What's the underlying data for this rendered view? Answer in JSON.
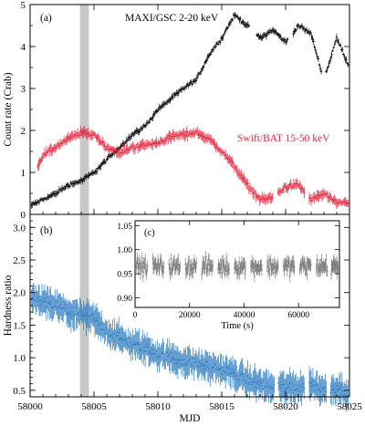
{
  "colors": {
    "maxi": "#000000",
    "bat": "#e3263f",
    "hardness": "#2a7ac0",
    "inset": "#808080",
    "shade": "#c8c8c8"
  },
  "chart_data": [
    {
      "panel": "(a)",
      "type": "scatter",
      "xlabel": "",
      "ylabel": "Count rate (Crab)",
      "xlim": [
        58000,
        58025
      ],
      "ylim": [
        0,
        5
      ],
      "xticks": [
        58000,
        58005,
        58010,
        58015,
        58020,
        58025
      ],
      "yticks": [
        0,
        1,
        2,
        3,
        4,
        5
      ],
      "shaded_band_x": [
        58003.9,
        58004.6
      ],
      "series": [
        {
          "name": "MAXI/GSC 2-20 keV",
          "color": "#000000",
          "x": [
            58000,
            58001,
            58002,
            58003,
            58004,
            58005,
            58006,
            58007,
            58008,
            58009,
            58010,
            58011,
            58012,
            58013,
            58014,
            58015,
            58016,
            58017,
            58018,
            58019,
            58020,
            58021,
            58022,
            58023,
            58024,
            58025
          ],
          "y": [
            0.2,
            0.35,
            0.5,
            0.7,
            0.8,
            1.0,
            1.3,
            1.6,
            1.9,
            2.1,
            2.5,
            2.75,
            3.0,
            3.2,
            3.8,
            4.2,
            4.75,
            4.5,
            4.2,
            4.4,
            4.1,
            4.5,
            4.3,
            3.2,
            4.2,
            3.5
          ]
        },
        {
          "name": "Swift/BAT 15-50 keV",
          "color": "#e3263f",
          "x": [
            58000.5,
            58001,
            58002,
            58003,
            58004,
            58005,
            58006,
            58007,
            58008,
            58009,
            58010,
            58011,
            58012,
            58013,
            58014,
            58015,
            58016,
            58017,
            58018,
            58019,
            58020,
            58021,
            58022,
            58023,
            58024,
            58025
          ],
          "y": [
            1.1,
            1.4,
            1.6,
            1.8,
            1.95,
            1.9,
            1.6,
            1.45,
            1.6,
            1.65,
            1.7,
            1.85,
            1.9,
            1.95,
            1.8,
            1.5,
            1.15,
            0.7,
            0.35,
            0.4,
            0.65,
            0.7,
            0.35,
            0.5,
            0.25,
            0.3
          ]
        }
      ]
    },
    {
      "panel": "(b)",
      "type": "scatter",
      "xlabel": "MJD",
      "ylabel": "Hardness ratio",
      "xlim": [
        58000,
        58025
      ],
      "ylim": [
        0.4,
        3.2
      ],
      "xticks": [
        58000,
        58005,
        58010,
        58015,
        58020,
        58025
      ],
      "xticklabels": [
        "58000",
        "58005",
        "58010",
        "58015",
        "58020",
        "58025"
      ],
      "yticks": [
        0.5,
        1.0,
        1.5,
        2.0,
        2.5,
        3.0
      ],
      "yticklabels": [
        "0.5",
        "1.0",
        "1.5",
        "2.0",
        "2.5",
        "3.0"
      ],
      "shaded_band_x": [
        58003.9,
        58004.6
      ],
      "series": [
        {
          "color": "#2a7ac0",
          "x": [
            58000,
            58001,
            58002,
            58003,
            58004,
            58005,
            58006,
            58007,
            58008,
            58009,
            58010,
            58011,
            58012,
            58013,
            58014,
            58015,
            58016,
            58017,
            58018,
            58019,
            58020,
            58021,
            58022,
            58023,
            58024,
            58025
          ],
          "y": [
            1.9,
            1.85,
            1.8,
            1.7,
            1.65,
            1.6,
            1.4,
            1.3,
            1.2,
            1.15,
            1.05,
            1.0,
            0.95,
            0.9,
            0.87,
            0.82,
            0.75,
            0.65,
            0.6,
            0.55,
            0.55,
            0.55,
            0.6,
            0.5,
            0.55,
            0.45
          ]
        }
      ]
    },
    {
      "panel": "(c)",
      "type": "scatter",
      "xlabel": "Time (s)",
      "ylabel": "",
      "xlim": [
        0,
        75000
      ],
      "ylim": [
        0.88,
        1.06
      ],
      "xticks": [
        0,
        20000,
        40000,
        60000
      ],
      "yticks": [
        0.9,
        0.95,
        1.0,
        1.05
      ],
      "yticklabels": [
        "0.90",
        "0.95",
        "1.00",
        "1.05"
      ],
      "segments": [
        [
          500,
          4500
        ],
        [
          6500,
          10500
        ],
        [
          12500,
          16500
        ],
        [
          18500,
          22500
        ],
        [
          24500,
          28500
        ],
        [
          30500,
          34500
        ],
        [
          36500,
          40500
        ],
        [
          42500,
          46500
        ],
        [
          48500,
          52500
        ],
        [
          54500,
          58500
        ],
        [
          60500,
          64500
        ],
        [
          66500,
          70500
        ],
        [
          72000,
          74500
        ]
      ],
      "mean": 0.965,
      "scatter": 0.04,
      "color": "#808080"
    }
  ]
}
